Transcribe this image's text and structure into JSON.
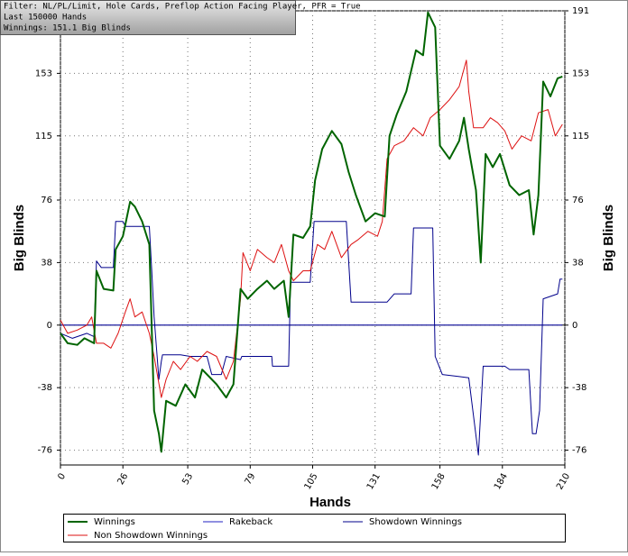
{
  "chart_data": {
    "type": "line",
    "annotations": [
      "Filter: NL/PL/Limit, Hole Cards, Preflop Action Facing Player, PFR = True",
      "Last  150000 Hands",
      "Winnings: 151.1 Big Blinds"
    ],
    "xlabel": "Hands",
    "ylabel": "Big Blinds",
    "y2label": "Big Blinds",
    "xlim": [
      0,
      210
    ],
    "xticks": [
      0,
      26,
      53,
      79,
      105,
      131,
      158,
      184,
      210
    ],
    "ylim": [
      -85,
      191
    ],
    "yticks": [
      -76,
      -38,
      0,
      38,
      76,
      115,
      153,
      191
    ],
    "y2lim": [
      -85,
      191
    ],
    "y2ticks": [
      -76,
      -38,
      0,
      38,
      76,
      115,
      153,
      191
    ],
    "grid": true,
    "series": [
      {
        "name": "Winnings",
        "color": "#006400",
        "width": 2,
        "x": [
          0,
          3,
          7,
          10,
          14,
          15,
          18,
          22,
          23,
          26,
          29,
          31,
          34,
          37,
          39,
          41,
          42,
          44,
          48,
          52,
          56,
          59,
          65,
          69,
          72,
          75,
          78,
          82,
          86,
          89,
          93,
          95,
          97,
          101,
          104,
          106,
          109,
          113,
          117,
          120,
          123,
          127,
          131,
          135,
          137,
          140,
          144,
          148,
          151,
          153,
          156,
          158,
          162,
          166,
          168,
          170,
          173,
          175,
          177,
          180,
          183,
          187,
          191,
          195,
          197,
          199,
          201,
          204,
          207,
          209
        ],
        "values": [
          -5,
          -11,
          -12,
          -8,
          -11,
          33,
          22,
          21,
          46,
          54,
          75,
          72,
          63,
          49,
          -52,
          -66,
          -77,
          -46,
          -49,
          -36,
          -44,
          -27,
          -36,
          -44,
          -36,
          22,
          16,
          22,
          27,
          22,
          27,
          5,
          55,
          53,
          60,
          88,
          107,
          118,
          110,
          93,
          79,
          63,
          68,
          66,
          115,
          128,
          142,
          167,
          164,
          190,
          181,
          109,
          101,
          112,
          126,
          107,
          82,
          38,
          104,
          96,
          104,
          85,
          79,
          82,
          55,
          79,
          148,
          139,
          150,
          151.1
        ]
      },
      {
        "name": "Rakeback",
        "color": "#2020c0",
        "width": 1,
        "x": [
          0,
          209
        ],
        "values": [
          0,
          0
        ]
      },
      {
        "name": "Showdown Winnings",
        "color": "#00008b",
        "width": 1,
        "x": [
          0,
          5,
          11,
          14,
          15,
          17,
          22,
          23,
          26,
          27,
          37,
          38,
          39,
          41,
          42,
          42.5,
          50,
          54,
          61,
          63,
          67,
          69,
          75,
          75.5,
          88,
          88.3,
          95,
          95.8,
          104,
          105.6,
          119,
          121,
          136,
          139,
          146,
          147,
          155,
          156,
          159,
          170,
          174,
          176,
          185,
          187,
          195,
          196.5,
          198,
          199.5,
          201,
          207,
          208,
          209
        ],
        "values": [
          -5,
          -8,
          -5,
          -7,
          39,
          35,
          35,
          63,
          63,
          60,
          60,
          33,
          5,
          -33,
          -22,
          -18,
          -18,
          -19,
          -19,
          -30,
          -30,
          -19,
          -21,
          -19,
          -19,
          -25,
          -25,
          26,
          26,
          63,
          63,
          14,
          14,
          19,
          19,
          59,
          59,
          -19,
          -30,
          -32,
          -79,
          -25,
          -25,
          -27,
          -27,
          -66,
          -66,
          -52,
          16,
          19,
          28,
          28
        ]
      },
      {
        "name": "Non Showdown Winnings",
        "color": "#dd1111",
        "width": 1,
        "x": [
          0,
          3,
          7,
          11,
          13,
          15,
          18,
          21,
          24,
          27,
          29,
          31,
          34,
          37,
          39,
          42,
          44,
          47,
          50,
          54,
          57,
          61,
          65,
          69,
          72,
          75,
          76,
          79,
          82,
          86,
          89,
          92,
          95,
          97,
          101,
          104,
          107,
          110,
          113,
          117,
          121,
          124,
          128,
          132,
          134,
          136,
          139,
          143,
          147,
          151,
          154,
          158,
          162,
          166,
          169,
          170,
          172,
          176,
          179,
          182,
          185,
          188,
          192,
          196,
          199,
          203,
          206,
          209
        ],
        "values": [
          3,
          -5,
          -3,
          0,
          5,
          -11,
          -11,
          -14,
          -5,
          8,
          16,
          5,
          8,
          -5,
          -19,
          -44,
          -33,
          -22,
          -27,
          -19,
          -22,
          -16,
          -19,
          -33,
          -22,
          16,
          44,
          33,
          46,
          41,
          38,
          49,
          33,
          27,
          33,
          33,
          49,
          46,
          57,
          41,
          49,
          52,
          57,
          54,
          63,
          101,
          109,
          112,
          120,
          115,
          126,
          131,
          137,
          145,
          161,
          142,
          120,
          120,
          126,
          123,
          118,
          107,
          115,
          112,
          129,
          131,
          115,
          122
        ]
      }
    ]
  }
}
